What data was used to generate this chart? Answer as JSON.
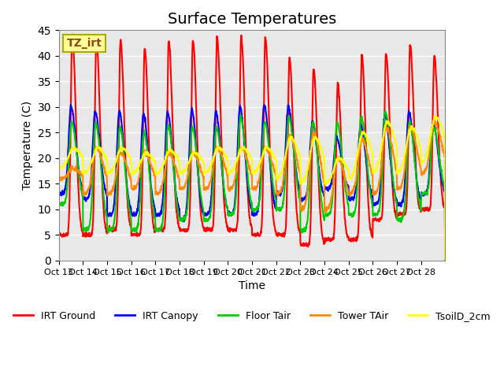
{
  "title": "Surface Temperatures",
  "xlabel": "Time",
  "ylabel": "Temperature (C)",
  "ylim": [
    0,
    45
  ],
  "n_days": 16,
  "xtick_labels": [
    "Oct 13",
    "Oct 14",
    "Oct 15",
    "Oct 16",
    "Oct 17",
    "Oct 18",
    "Oct 19",
    "Oct 20",
    "Oct 21",
    "Oct 22",
    "Oct 23",
    "Oct 24",
    "Oct 25",
    "Oct 26",
    "Oct 27",
    "Oct 28"
  ],
  "annotation_text": "TZ_irt",
  "annotation_bg": "#FFFF99",
  "annotation_border": "#AAAA00",
  "series": {
    "IRT Ground": {
      "color": "#FF0000",
      "lw": 1.5
    },
    "IRT Canopy": {
      "color": "#0000FF",
      "lw": 1.5
    },
    "Floor Tair": {
      "color": "#00CC00",
      "lw": 1.5
    },
    "Tower TAir": {
      "color": "#FF8800",
      "lw": 1.5
    },
    "TsoilD_2cm": {
      "color": "#FFFF00",
      "lw": 1.5
    }
  },
  "plot_bg": "#E8E8E8",
  "grid_color": "#FFFFFF",
  "title_fontsize": 14,
  "axis_label_fontsize": 10,
  "tick_fontsize": 8,
  "legend_fontsize": 9,
  "yticks": [
    0,
    5,
    10,
    15,
    20,
    25,
    30,
    35,
    40,
    45
  ]
}
